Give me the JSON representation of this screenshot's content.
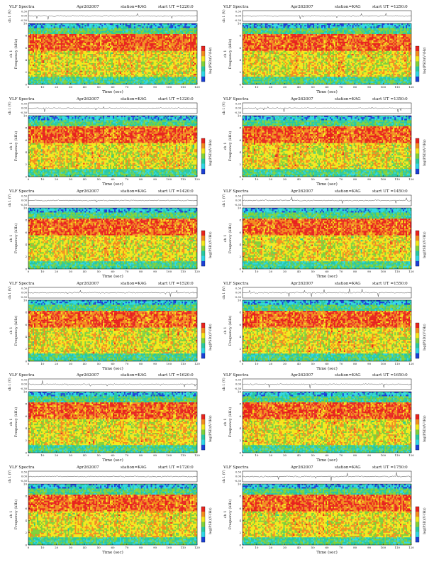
{
  "common": {
    "label_vlf": "VLF Spectra",
    "date": "Apr262007",
    "station": "station=KAG",
    "start_prefix": "start UT =",
    "wave_ylabel": "ch 1 (V)",
    "wave_ticks": [
      "0.30",
      "0.00",
      "-0.30"
    ],
    "spec_ylabel_a": "ch 1",
    "spec_ylabel_b": "Frequency (kHz)",
    "freq_ticks": [
      "10",
      "8",
      "6",
      "4",
      "2",
      "0"
    ],
    "xlabel": "Time (sec)",
    "time_ticks": [
      "0",
      "10",
      "20",
      "30",
      "40",
      "50",
      "60",
      "70",
      "80",
      "90",
      "100",
      "110",
      "120"
    ],
    "colorbar_label": "log(PSD)(V²/Hz)",
    "colorbar_ticks": [
      "",
      "",
      "",
      "",
      ""
    ]
  },
  "palette": {
    "red": "#e8231e",
    "orange": "#f28c1e",
    "yellow": "#f4e81c",
    "green": "#7fd13a",
    "teal": "#27c8a0",
    "cyan": "#2fd6e6",
    "blue": "#1b3fd6",
    "wave": "#333333"
  },
  "chart_data": [
    {
      "type": "heatmap",
      "start_ut": "1220:0",
      "xlabel": "Time (sec)",
      "ylabel": "Frequency (kHz)",
      "xlim": [
        0,
        120
      ],
      "ylim": [
        0,
        10
      ]
    },
    {
      "type": "heatmap",
      "start_ut": "1250:0",
      "xlabel": "Time (sec)",
      "ylabel": "Frequency (kHz)",
      "xlim": [
        0,
        120
      ],
      "ylim": [
        0,
        10
      ]
    },
    {
      "type": "heatmap",
      "start_ut": "1320:0",
      "xlabel": "Time (sec)",
      "ylabel": "Frequency (kHz)",
      "xlim": [
        0,
        120
      ],
      "ylim": [
        0,
        10
      ]
    },
    {
      "type": "heatmap",
      "start_ut": "1350:0",
      "xlabel": "Time (sec)",
      "ylabel": "Frequency (kHz)",
      "xlim": [
        0,
        120
      ],
      "ylim": [
        0,
        10
      ]
    },
    {
      "type": "heatmap",
      "start_ut": "1420:0",
      "xlabel": "Time (sec)",
      "ylabel": "Frequency (kHz)",
      "xlim": [
        0,
        120
      ],
      "ylim": [
        0,
        10
      ]
    },
    {
      "type": "heatmap",
      "start_ut": "1450:0",
      "xlabel": "Time (sec)",
      "ylabel": "Frequency (kHz)",
      "xlim": [
        0,
        120
      ],
      "ylim": [
        0,
        10
      ]
    },
    {
      "type": "heatmap",
      "start_ut": "1520:0",
      "xlabel": "Time (sec)",
      "ylabel": "Frequency (kHz)",
      "xlim": [
        0,
        120
      ],
      "ylim": [
        0,
        10
      ]
    },
    {
      "type": "heatmap",
      "start_ut": "1550:0",
      "xlabel": "Time (sec)",
      "ylabel": "Frequency (kHz)",
      "xlim": [
        0,
        120
      ],
      "ylim": [
        0,
        10
      ]
    },
    {
      "type": "heatmap",
      "start_ut": "1620:0",
      "xlabel": "Time (sec)",
      "ylabel": "Frequency (kHz)",
      "xlim": [
        0,
        120
      ],
      "ylim": [
        0,
        10
      ]
    },
    {
      "type": "heatmap",
      "start_ut": "1650:0",
      "xlabel": "Time (sec)",
      "ylabel": "Frequency (kHz)",
      "xlim": [
        0,
        120
      ],
      "ylim": [
        0,
        10
      ]
    },
    {
      "type": "heatmap",
      "start_ut": "1720:0",
      "xlabel": "Time (sec)",
      "ylabel": "Frequency (kHz)",
      "xlim": [
        0,
        120
      ],
      "ylim": [
        0,
        10
      ]
    },
    {
      "type": "heatmap",
      "start_ut": "1750:0",
      "xlabel": "Time (sec)",
      "ylabel": "Frequency (kHz)",
      "xlim": [
        0,
        120
      ],
      "ylim": [
        0,
        10
      ]
    }
  ]
}
